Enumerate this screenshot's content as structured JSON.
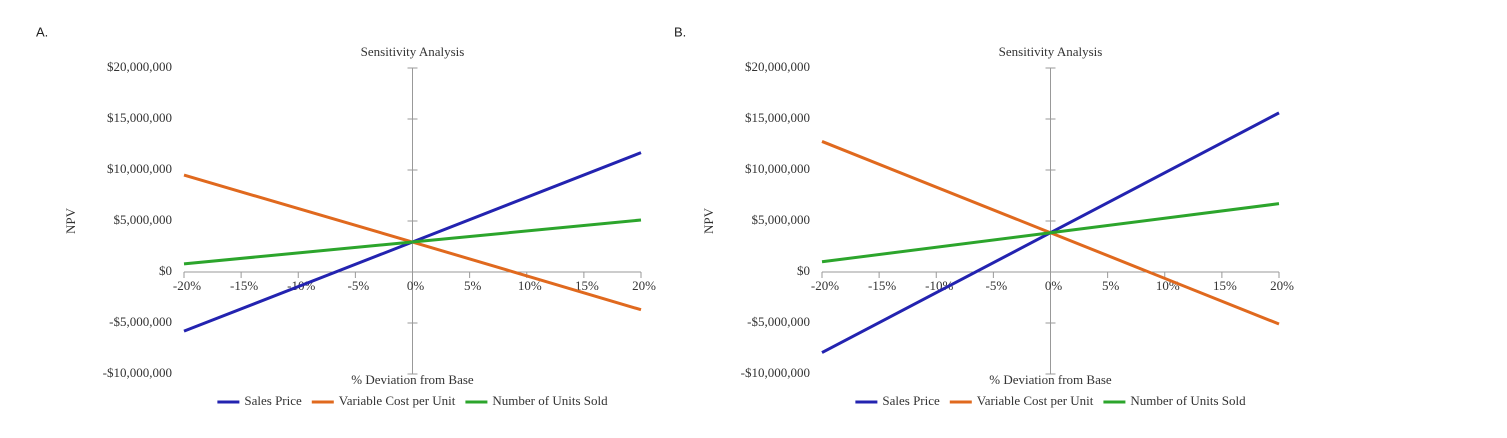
{
  "chart_data": [
    {
      "type": "line",
      "panel_label": "A.",
      "title": "Sensitivity Analysis",
      "x_label": "% Deviation from Base",
      "y_label": "NPV",
      "x": [
        -20,
        0,
        20
      ],
      "xlim": [
        -20,
        20
      ],
      "xticks": [
        {
          "value": -20,
          "label": "-20%"
        },
        {
          "value": -15,
          "label": "-15%"
        },
        {
          "value": -10,
          "label": "-10%"
        },
        {
          "value": -5,
          "label": "-5%"
        },
        {
          "value": 0,
          "label": "0%"
        },
        {
          "value": 5,
          "label": "5%"
        },
        {
          "value": 10,
          "label": "10%"
        },
        {
          "value": 15,
          "label": "15%"
        },
        {
          "value": 20,
          "label": "20%"
        }
      ],
      "ylim": [
        -10000000,
        20000000
      ],
      "yticks": [
        {
          "value": -10000000,
          "label": "-$10,000,000"
        },
        {
          "value": -5000000,
          "label": "-$5,000,000"
        },
        {
          "value": 0,
          "label": "$0"
        },
        {
          "value": 5000000,
          "label": "$5,000,000"
        },
        {
          "value": 10000000,
          "label": "$10,000,000"
        },
        {
          "value": 15000000,
          "label": "$15,000,000"
        },
        {
          "value": 20000000,
          "label": "$20,000,000"
        }
      ],
      "series": [
        {
          "name": "Sales Price",
          "color": "#2323b0",
          "values": [
            -5800000,
            2940000,
            11700000
          ]
        },
        {
          "name": "Variable Cost per Unit",
          "color": "#e0691e",
          "values": [
            9500000,
            2940000,
            -3700000
          ]
        },
        {
          "name": "Number of Units Sold",
          "color": "#2ca52c",
          "values": [
            800000,
            2940000,
            5100000
          ]
        }
      ]
    },
    {
      "type": "line",
      "panel_label": "B.",
      "title": "Sensitivity Analysis",
      "x_label": "% Deviation from Base",
      "y_label": "NPV",
      "x": [
        -20,
        0,
        20
      ],
      "xlim": [
        -20,
        20
      ],
      "xticks": [
        {
          "value": -20,
          "label": "-20%"
        },
        {
          "value": -15,
          "label": "-15%"
        },
        {
          "value": -10,
          "label": "-10%"
        },
        {
          "value": -5,
          "label": "-5%"
        },
        {
          "value": 0,
          "label": "0%"
        },
        {
          "value": 5,
          "label": "5%"
        },
        {
          "value": 10,
          "label": "10%"
        },
        {
          "value": 15,
          "label": "15%"
        },
        {
          "value": 20,
          "label": "20%"
        }
      ],
      "ylim": [
        -10000000,
        20000000
      ],
      "yticks": [
        {
          "value": -10000000,
          "label": "-$10,000,000"
        },
        {
          "value": -5000000,
          "label": "-$5,000,000"
        },
        {
          "value": 0,
          "label": "$0"
        },
        {
          "value": 5000000,
          "label": "$5,000,000"
        },
        {
          "value": 10000000,
          "label": "$10,000,000"
        },
        {
          "value": 15000000,
          "label": "$15,000,000"
        },
        {
          "value": 20000000,
          "label": "$20,000,000"
        }
      ],
      "series": [
        {
          "name": "Sales Price",
          "color": "#2323b0",
          "values": [
            -7900000,
            3850000,
            15600000
          ]
        },
        {
          "name": "Variable Cost per Unit",
          "color": "#e0691e",
          "values": [
            12800000,
            3850000,
            -5100000
          ]
        },
        {
          "name": "Number of Units Sold",
          "color": "#2ca52c",
          "values": [
            1000000,
            3850000,
            6700000
          ]
        }
      ]
    }
  ]
}
